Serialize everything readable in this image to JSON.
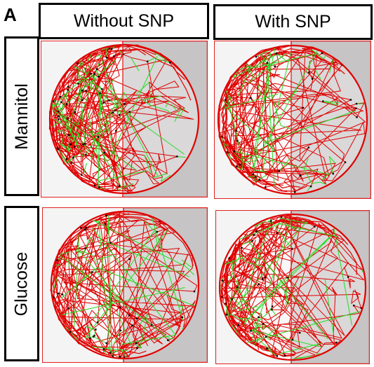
{
  "figure": {
    "panel_letter": "A",
    "columns": [
      "Without SNP",
      "With SNP"
    ],
    "rows": [
      "Mannitol",
      "Glucose"
    ]
  },
  "colors": {
    "track_primary": "#e00000",
    "track_secondary": "#22dd22",
    "track_points": "#000000",
    "dark_zone": "#c6c4c4",
    "light_zone": "#f4f4f4",
    "zone_border": "#e02020"
  },
  "tiles": [
    {
      "row": "Mannitol",
      "column": "Without SNP",
      "pattern": "dense-left"
    },
    {
      "row": "Mannitol",
      "column": "With SNP",
      "pattern": "perimeter-left"
    },
    {
      "row": "Glucose",
      "column": "Without SNP",
      "pattern": "perimeter-mixed"
    },
    {
      "row": "Glucose",
      "column": "With SNP",
      "pattern": "perimeter-left"
    }
  ]
}
